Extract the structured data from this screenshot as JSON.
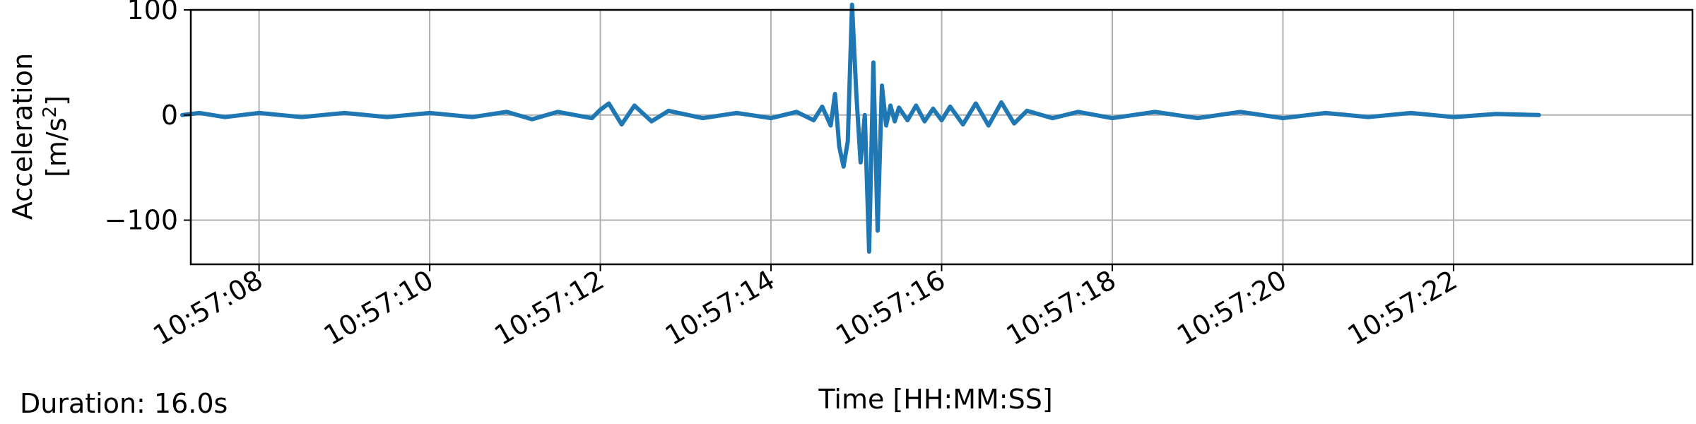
{
  "chart_data": {
    "type": "line",
    "xlabel": "Time [HH:MM:SS]",
    "ylabel_line1": "Acceleration",
    "ylabel_unit_pre": "[m/s",
    "ylabel_unit_sup": "2",
    "ylabel_unit_post": "]",
    "ylim": [
      -142,
      100
    ],
    "xlim_seconds": [
      427.2,
      444.8
    ],
    "x_ticks": [
      "10:57:08",
      "10:57:10",
      "10:57:12",
      "10:57:14",
      "10:57:16",
      "10:57:18",
      "10:57:20",
      "10:57:22"
    ],
    "x_tick_seconds": [
      428,
      430,
      432,
      434,
      436,
      438,
      440,
      442
    ],
    "y_ticks": [
      100,
      0,
      -100
    ],
    "y_tick_labels": [
      "100",
      "0",
      "−100"
    ],
    "grid": true,
    "line_color": "#1f77b4",
    "series": [
      {
        "time_seconds": [
          427.1,
          427.3,
          427.6,
          428.0,
          428.5,
          429.0,
          429.5,
          430.0,
          430.5,
          430.9,
          431.2,
          431.5,
          431.9,
          432.0,
          432.1,
          432.25,
          432.4,
          432.6,
          432.8,
          433.2,
          433.6,
          434.0,
          434.3,
          434.5,
          434.6,
          434.7,
          434.75,
          434.8,
          434.85,
          434.9,
          434.95,
          435.0,
          435.05,
          435.1,
          435.15,
          435.2,
          435.25,
          435.3,
          435.35,
          435.4,
          435.45,
          435.5,
          435.6,
          435.7,
          435.8,
          435.9,
          436.0,
          436.1,
          436.25,
          436.4,
          436.55,
          436.7,
          436.85,
          437.0,
          437.3,
          437.6,
          438.0,
          438.5,
          439.0,
          439.5,
          440.0,
          440.5,
          441.0,
          441.5,
          442.0,
          442.5,
          443.0
        ],
        "acceleration": [
          0,
          2,
          -2,
          2,
          -2,
          2,
          -2,
          2,
          -2,
          3,
          -4,
          3,
          -3,
          5,
          11,
          -9,
          9,
          -6,
          4,
          -3,
          2,
          -3,
          3,
          -5,
          8,
          -10,
          20,
          -30,
          -49,
          -25,
          105,
          20,
          -45,
          0,
          -130,
          50,
          -110,
          28,
          -10,
          9,
          -6,
          7,
          -5,
          9,
          -6,
          6,
          -5,
          8,
          -9,
          11,
          -10,
          12,
          -8,
          4,
          -3,
          3,
          -3,
          3,
          -3,
          3,
          -3,
          2,
          -2,
          2,
          -2,
          1,
          0
        ]
      }
    ]
  },
  "footer": {
    "duration_label": "Duration: 16.0s"
  }
}
